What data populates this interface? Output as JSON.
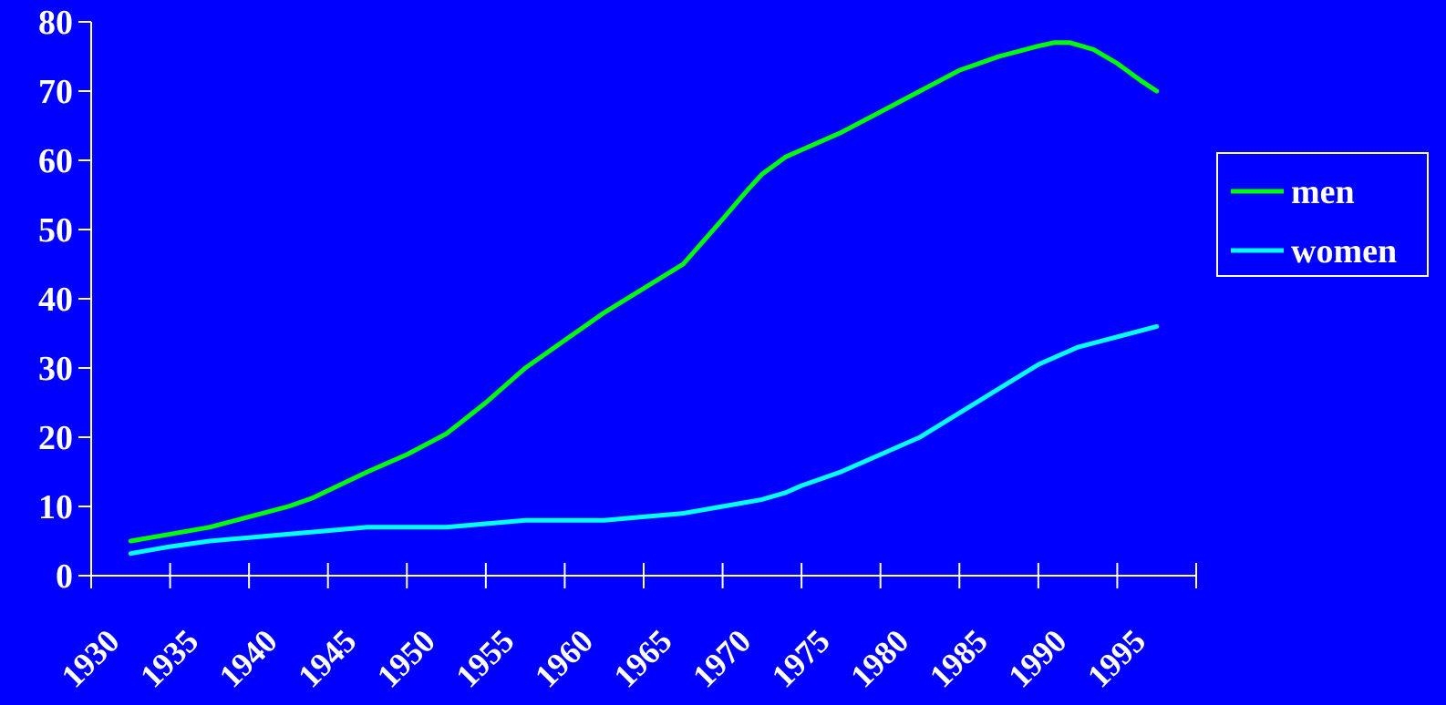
{
  "chart_data": {
    "type": "line",
    "title": "",
    "xlabel": "",
    "ylabel": "",
    "xlim": [
      1930,
      2000
    ],
    "ylim": [
      0,
      80
    ],
    "yticks": [
      "0",
      "10",
      "20",
      "30",
      "40",
      "50",
      "60",
      "70",
      "80"
    ],
    "xticks": [
      "1930",
      "1935",
      "1940",
      "1945",
      "1950",
      "1955",
      "1960",
      "1965",
      "1970",
      "1975",
      "1980",
      "1985",
      "1990",
      "1995"
    ],
    "grid": false,
    "legend_position": "right",
    "colors": {
      "background": "#0000FF",
      "axis": "#FFFFFF",
      "text": "#FFFFFF"
    },
    "series": [
      {
        "name": "men",
        "color": "#00FF00",
        "points": [
          [
            1932.5,
            5
          ],
          [
            1935,
            6
          ],
          [
            1937.5,
            7
          ],
          [
            1940,
            8.5
          ],
          [
            1942.5,
            10
          ],
          [
            1944,
            11.2
          ],
          [
            1947.5,
            15
          ],
          [
            1950,
            17.5
          ],
          [
            1952.5,
            20.5
          ],
          [
            1955,
            25
          ],
          [
            1957.5,
            30
          ],
          [
            1960,
            34
          ],
          [
            1962.5,
            38
          ],
          [
            1965,
            41.5
          ],
          [
            1967.5,
            45
          ],
          [
            1970,
            51.5
          ],
          [
            1971.5,
            55.5
          ],
          [
            1972.5,
            58
          ],
          [
            1974,
            60.5
          ],
          [
            1977.5,
            64
          ],
          [
            1980,
            67
          ],
          [
            1982.5,
            70
          ],
          [
            1985,
            73
          ],
          [
            1987.5,
            75
          ],
          [
            1990,
            76.5
          ],
          [
            1991,
            77
          ],
          [
            1992,
            77
          ],
          [
            1993.5,
            76
          ],
          [
            1995,
            74
          ],
          [
            1996.5,
            71.5
          ],
          [
            1997.5,
            70
          ]
        ]
      },
      {
        "name": "women",
        "color": "#00FFFF",
        "points": [
          [
            1932.5,
            3.2
          ],
          [
            1935,
            4.2
          ],
          [
            1937.5,
            5
          ],
          [
            1940,
            5.5
          ],
          [
            1942.5,
            6
          ],
          [
            1945,
            6.5
          ],
          [
            1947.5,
            7
          ],
          [
            1950,
            7
          ],
          [
            1952.5,
            7
          ],
          [
            1955,
            7.5
          ],
          [
            1957.5,
            8
          ],
          [
            1960,
            8
          ],
          [
            1962.5,
            8
          ],
          [
            1965,
            8.5
          ],
          [
            1967.5,
            9
          ],
          [
            1970,
            10
          ],
          [
            1972.5,
            11
          ],
          [
            1974,
            12
          ],
          [
            1975,
            13
          ],
          [
            1977.5,
            15
          ],
          [
            1980,
            17.5
          ],
          [
            1982.5,
            20
          ],
          [
            1985,
            23.5
          ],
          [
            1987.5,
            27
          ],
          [
            1990,
            30.5
          ],
          [
            1992.5,
            33
          ],
          [
            1995,
            34.5
          ],
          [
            1997.5,
            36
          ]
        ]
      }
    ]
  }
}
